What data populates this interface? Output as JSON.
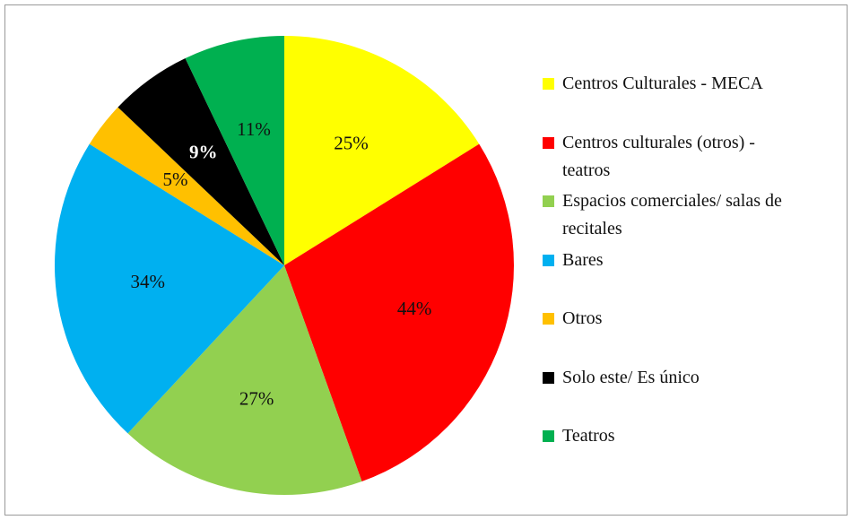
{
  "chart_data": {
    "type": "pie",
    "categories": [
      "Centros Culturales - MECA",
      "Centros culturales (otros) - teatros",
      "Espacios comerciales/ salas de recitales",
      "Bares",
      "Otros",
      "Solo este/ Es único",
      "Teatros"
    ],
    "values": [
      25,
      44,
      27,
      34,
      5,
      9,
      11
    ],
    "value_labels": [
      "25%",
      "44%",
      "27%",
      "34%",
      "5%",
      "9%",
      "11%"
    ],
    "colors": [
      "#ffff00",
      "#ff0000",
      "#92d050",
      "#00b0f0",
      "#ffc000",
      "#000000",
      "#00b050"
    ],
    "legend": "right"
  }
}
